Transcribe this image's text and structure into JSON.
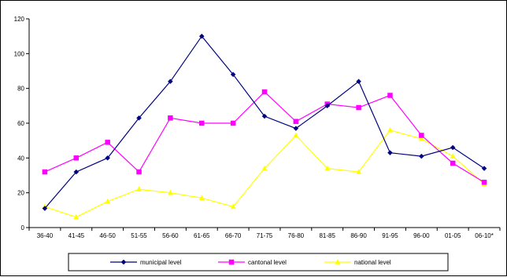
{
  "chart_data": {
    "type": "line",
    "title": "",
    "xlabel": "",
    "ylabel": "",
    "categories": [
      "36-40",
      "41-45",
      "46-50",
      "51-55",
      "56-60",
      "61-65",
      "66-70",
      "71-75",
      "76-80",
      "81-85",
      "86-90",
      "91-95",
      "96-00",
      "01-05",
      "06-10*"
    ],
    "ylim": [
      0,
      120
    ],
    "yticks": [
      0,
      20,
      40,
      60,
      80,
      100,
      120
    ],
    "grid": false,
    "legend_position": "bottom",
    "series": [
      {
        "name": "municipal level",
        "color": "#000080",
        "marker": "diamond",
        "values": [
          11,
          32,
          40,
          63,
          84,
          110,
          88,
          64,
          57,
          70,
          84,
          43,
          41,
          46,
          34
        ]
      },
      {
        "name": "cantonal level",
        "color": "#ff00ff",
        "marker": "square",
        "values": [
          32,
          40,
          49,
          32,
          63,
          60,
          60,
          78,
          61,
          71,
          69,
          76,
          53,
          37,
          26
        ]
      },
      {
        "name": "national level",
        "color": "#ffff00",
        "marker": "triangle",
        "values": [
          12,
          6,
          15,
          22,
          20,
          17,
          12,
          34,
          53,
          34,
          32,
          56,
          51,
          41,
          25
        ]
      }
    ]
  }
}
